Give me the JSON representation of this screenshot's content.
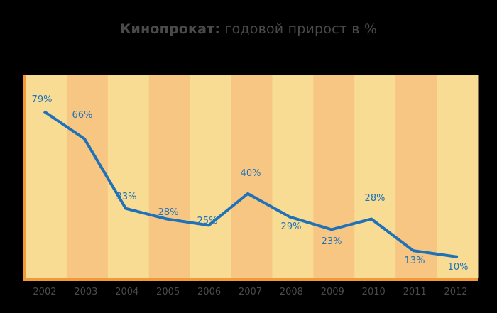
{
  "title": {
    "bold": "Кинопрокат:",
    "rest": " годовой прирост в %"
  },
  "colors": {
    "background": "#000000",
    "band_light": "#f8dc93",
    "band_dark": "#f6c682",
    "border": "#f29a3a",
    "line": "#1f72b8",
    "label": "#1f72b8",
    "axis_text": "#4a4a4a"
  },
  "chart_data": {
    "type": "line",
    "title": "Кинопрокат: годовой прирост в %",
    "xlabel": "",
    "ylabel": "",
    "categories": [
      "2002",
      "2003",
      "2004",
      "2005",
      "2006",
      "2007",
      "2008",
      "2009",
      "2010",
      "2011",
      "2012"
    ],
    "series": [
      {
        "name": "Годовой прирост, %",
        "values": [
          79,
          66,
          33,
          28,
          25,
          40,
          29,
          23,
          28,
          13,
          10
        ]
      }
    ],
    "data_labels": [
      "79%",
      "66%",
      "33%",
      "28%",
      "25%",
      "40%",
      "29%",
      "23%",
      "28%",
      "13%",
      "10%"
    ],
    "grid": false,
    "alternating_column_bands": true,
    "legend": "none"
  }
}
